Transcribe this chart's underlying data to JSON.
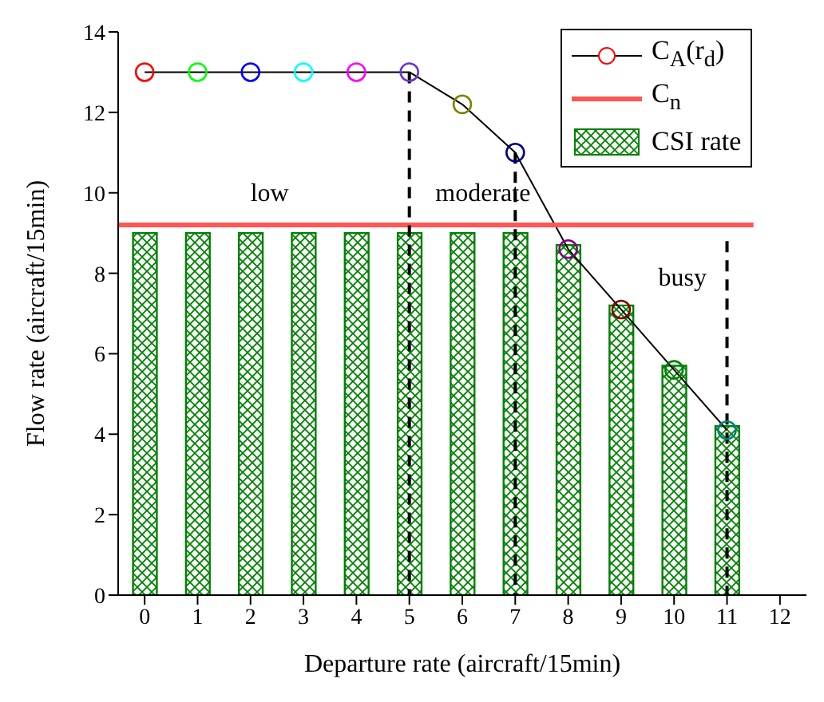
{
  "chart_data": {
    "type": "bar",
    "xlabel": "Departure rate (aircraft/15min)",
    "ylabel": "Flow rate (aircraft/15min)",
    "x": [
      0,
      1,
      2,
      3,
      4,
      5,
      6,
      7,
      8,
      9,
      10,
      11
    ],
    "xlim": [
      -0.5,
      12.5
    ],
    "xticks": [
      0,
      1,
      2,
      3,
      4,
      5,
      6,
      7,
      8,
      9,
      10,
      11,
      12
    ],
    "ylim": [
      0,
      14
    ],
    "yticks": [
      0,
      2,
      4,
      6,
      8,
      10,
      12,
      14
    ],
    "grid": false,
    "legend": "top right",
    "marker": "circle",
    "series": [
      {
        "name": "CSI rate",
        "color": "#008000",
        "values": [
          9,
          9,
          9,
          9,
          9,
          9,
          9,
          9,
          8.7,
          7.2,
          5.7,
          4.2
        ]
      },
      {
        "name": "C$_{A}$(r$_{d}$)",
        "type": "line",
        "color": "#000000",
        "colors": [
          "#ff0000",
          "#00ff00",
          "#0000ff",
          "#00ffff",
          "#ff00ff",
          "#6633cc",
          "#808000",
          "#000080",
          "#800080",
          "#800000",
          "#008000",
          "#008080"
        ],
        "values": [
          13,
          13,
          13,
          13,
          13,
          13,
          12.2,
          11,
          8.6,
          7.1,
          5.6,
          4.1
        ]
      },
      {
        "name": "C$_{n}$",
        "type": "line",
        "color": "#ff5555",
        "marker": "none",
        "x": [
          -0.5,
          11.5
        ],
        "values": [
          9.2,
          9.2
        ]
      },
      {
        "type": "line",
        "color": "#000000",
        "marker": "none",
        "line_style": "dashed",
        "x": [
          5,
          5
        ],
        "values": [
          13,
          0
        ]
      },
      {
        "type": "line",
        "color": "#000000",
        "marker": "none",
        "line_style": "dashed",
        "x": [
          7,
          7
        ],
        "values": [
          11,
          0
        ]
      },
      {
        "type": "line",
        "color": "#000000",
        "marker": "none",
        "line_style": "dashed",
        "x": [
          11,
          11
        ],
        "values": [
          8.8,
          0
        ]
      }
    ],
    "annotations": [
      "low",
      "moderate",
      "busy"
    ]
  }
}
